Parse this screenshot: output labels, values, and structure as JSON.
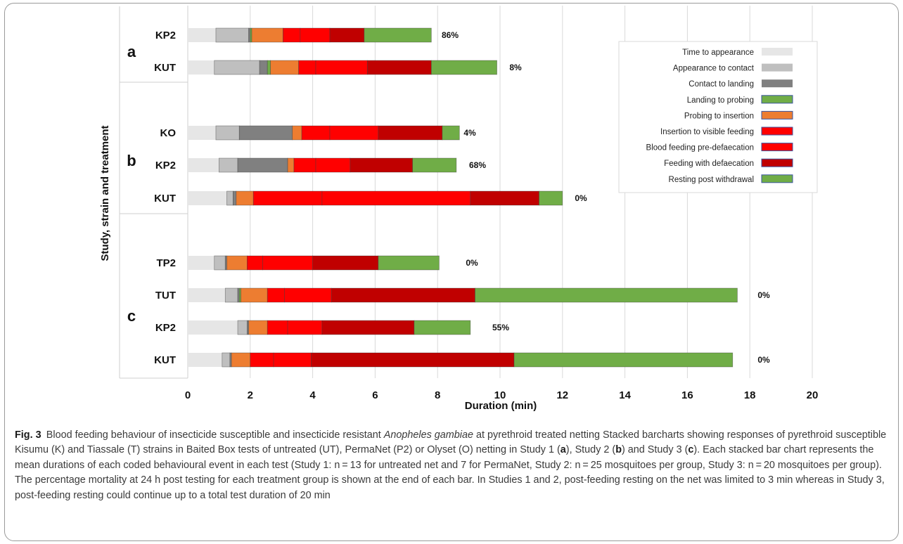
{
  "chart_data": {
    "type": "bar",
    "orientation": "horizontal",
    "stacked": true,
    "xlabel": "Duration (min)",
    "ylabel": "Study, strain and treatment",
    "xlim": [
      0,
      20
    ],
    "xticks": [
      "0",
      "2",
      "4",
      "6",
      "8",
      "10",
      "12",
      "14",
      "16",
      "18",
      "20"
    ],
    "grid": "vertical",
    "legend_position": "right",
    "series": [
      {
        "name": "Time to appearance",
        "color": "#e6e6e6"
      },
      {
        "name": "Appearance to contact",
        "color": "#bfbfbf"
      },
      {
        "name": "Contact to landing",
        "color": "#808080"
      },
      {
        "name": "Landing to probing",
        "color": "#70ad47"
      },
      {
        "name": "Probing to insertion",
        "color": "#ed7d31"
      },
      {
        "name": "Insertion to visible feeding",
        "color": "#ff0000"
      },
      {
        "name": "Blood feeding pre-defaecation",
        "color": "#ff0000"
      },
      {
        "name": "Feeding with defaecation",
        "color": "#c00000"
      },
      {
        "name": "Resting post withdrawal",
        "color": "#70ad47"
      }
    ],
    "groups": [
      {
        "label": "a",
        "bars": [
          {
            "category": "KP2",
            "mortality": "86%",
            "values": [
              0.9,
              1.05,
              0.05,
              0.05,
              1.0,
              0.55,
              0.95,
              1.1,
              2.15
            ]
          },
          {
            "category": "KUT",
            "mortality": "8%",
            "values": [
              0.85,
              1.45,
              0.25,
              0.1,
              0.9,
              0.55,
              1.65,
              2.05,
              2.1
            ]
          }
        ]
      },
      {
        "label": "b",
        "bars": [
          {
            "category": "KO",
            "mortality": "4%",
            "values": [
              0.9,
              0.75,
              1.7,
              0.0,
              0.3,
              0.9,
              1.55,
              2.05,
              0.55
            ]
          },
          {
            "category": "KP2",
            "mortality": "68%",
            "values": [
              1.0,
              0.6,
              1.6,
              0.0,
              0.2,
              0.7,
              1.1,
              2.0,
              1.4
            ]
          },
          {
            "category": "KUT",
            "mortality": "0%",
            "values": [
              1.25,
              0.2,
              0.1,
              0.0,
              0.55,
              2.2,
              4.75,
              2.2,
              0.75
            ]
          }
        ]
      },
      {
        "label": "c",
        "bars": [
          {
            "category": "TP2",
            "mortality": "0%",
            "values": [
              0.85,
              0.35,
              0.05,
              0.0,
              0.65,
              0.5,
              1.6,
              2.1,
              1.95
            ]
          },
          {
            "category": "TUT",
            "mortality": "0%",
            "values": [
              1.2,
              0.4,
              0.05,
              0.05,
              0.85,
              0.55,
              1.5,
              4.6,
              8.4
            ]
          },
          {
            "category": "KP2",
            "mortality": "55%",
            "values": [
              1.6,
              0.3,
              0.05,
              0.0,
              0.6,
              0.65,
              1.1,
              2.95,
              1.8
            ]
          },
          {
            "category": "KUT",
            "mortality": "0%",
            "values": [
              1.1,
              0.25,
              0.05,
              0.0,
              0.6,
              0.75,
              1.2,
              6.5,
              7.0
            ]
          }
        ]
      }
    ]
  },
  "caption": {
    "label": "Fig. 3",
    "parts": [
      {
        "t": "Blood feeding behaviour of insecticide susceptible and insecticide resistant ",
        "s": "n"
      },
      {
        "t": "Anopheles gambiae",
        "s": "i"
      },
      {
        "t": " at pyrethroid treated netting Stacked barcharts showing responses of pyrethroid susceptible Kisumu (K) and Tiassale (T) strains in Baited Box tests of untreated (UT), PermaNet (P2) or Olyset (O) netting in Study 1 (",
        "s": "n"
      },
      {
        "t": "a",
        "s": "b"
      },
      {
        "t": "), Study 2 (",
        "s": "n"
      },
      {
        "t": "b",
        "s": "b"
      },
      {
        "t": ") and Study 3 (",
        "s": "n"
      },
      {
        "t": "c",
        "s": "b"
      },
      {
        "t": "). Each stacked bar chart represents the mean durations of each coded behavioural event in each test (Study 1: n = 13 for untreated net and 7 for PermaNet, Study 2: n = 25 mosquitoes per group, Study 3: n = 20 mosquitoes per group). The percentage mortality at 24 h post testing for each treatment group is shown at the end of each bar. In Studies 1 and 2, post-feeding resting on the net was limited to 3 min whereas in Study 3, post-feeding resting could continue up to a total test duration of 20 min",
        "s": "n"
      }
    ]
  }
}
